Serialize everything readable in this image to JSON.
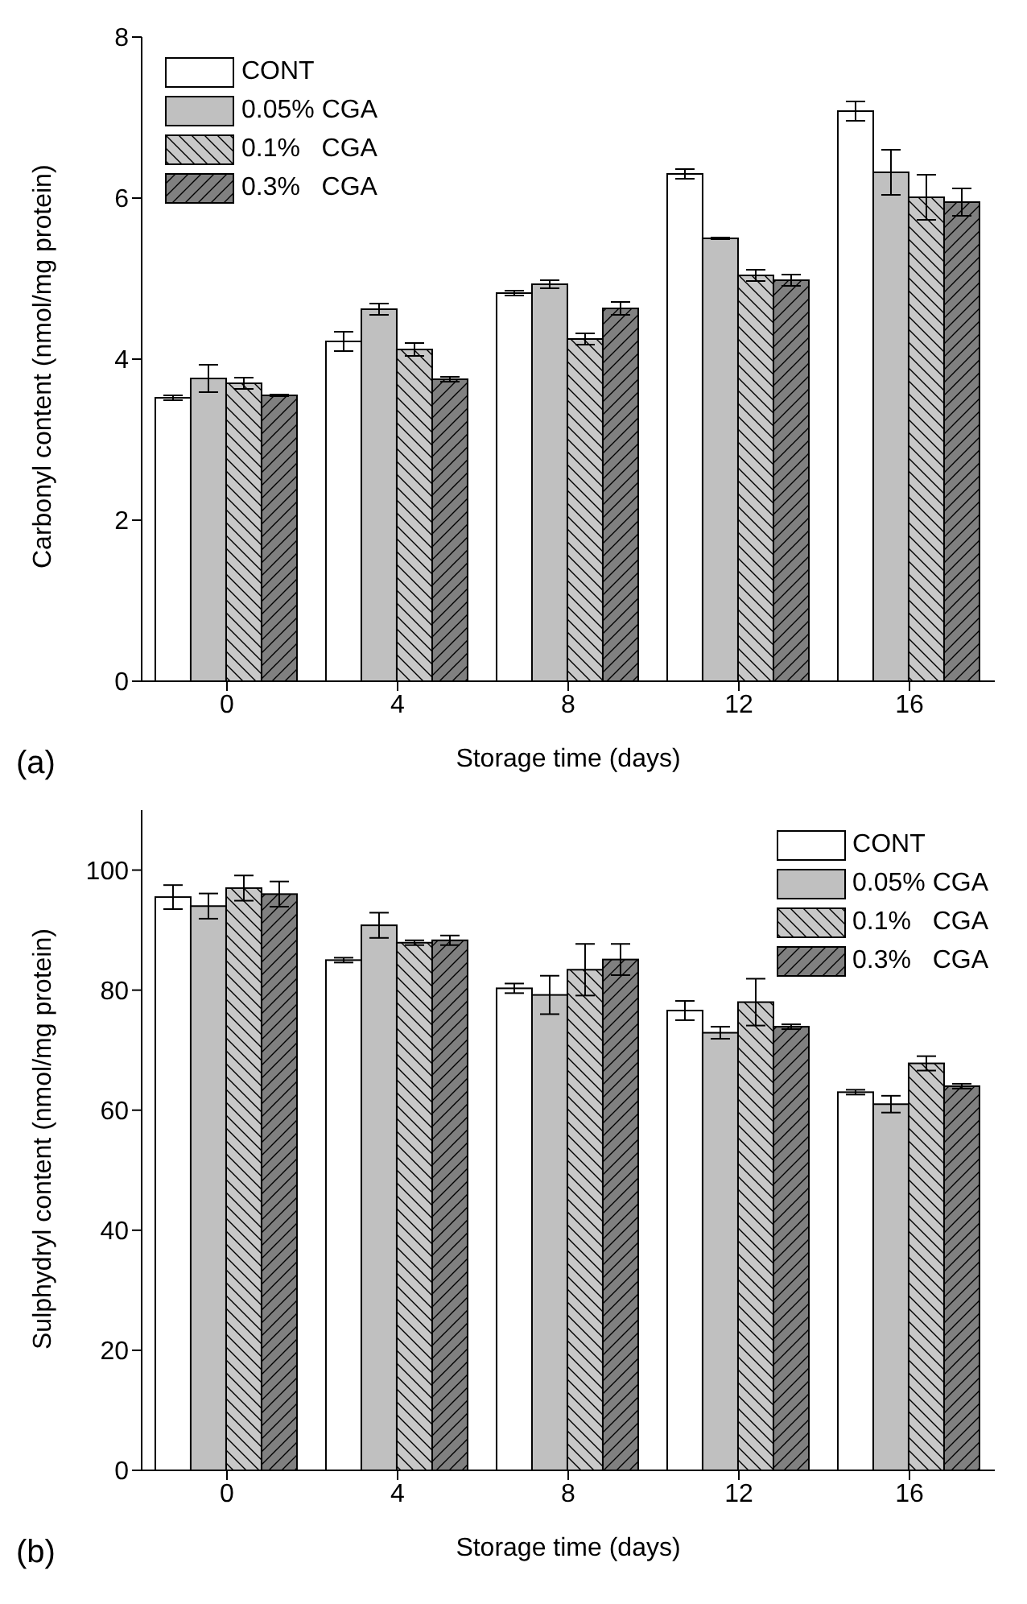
{
  "chart_data": [
    {
      "type": "bar",
      "xlabel": "Storage time (days)",
      "ylabel": "Carbonyl content (nmol/mg protein)",
      "categories": [
        "0",
        "4",
        "8",
        "12",
        "16"
      ],
      "ylim": [
        0,
        8
      ],
      "yticks": [
        0,
        2,
        4,
        6,
        8
      ],
      "legend": "top left",
      "annotations": [
        "(a)"
      ],
      "series": [
        {
          "name": "CONT",
          "color": "#ffffff",
          "values": [
            3.52,
            4.22,
            4.82,
            6.3,
            7.08
          ],
          "errors": [
            0.03,
            0.12,
            0.03,
            0.06,
            0.12
          ]
        },
        {
          "name": "0.05% CGA",
          "color": "#c0c0c0",
          "values": [
            3.76,
            4.62,
            4.93,
            5.5,
            6.32
          ],
          "errors": [
            0.17,
            0.07,
            0.05,
            0.01,
            0.28
          ]
        },
        {
          "name": "0.1%   CGA",
          "color": "#c8c8c8",
          "values": [
            3.7,
            4.12,
            4.25,
            5.04,
            6.01
          ],
          "errors": [
            0.07,
            0.08,
            0.07,
            0.07,
            0.28
          ]
        },
        {
          "name": "0.3%   CGA",
          "color": "#808080",
          "values": [
            3.55,
            3.75,
            4.63,
            4.98,
            5.95
          ],
          "errors": [
            0.01,
            0.03,
            0.08,
            0.07,
            0.17
          ]
        }
      ]
    },
    {
      "type": "bar",
      "xlabel": "Storage time (days)",
      "ylabel": "Sulphydryl content (nmol/mg protein)",
      "categories": [
        "0",
        "4",
        "8",
        "12",
        "16"
      ],
      "ylim": [
        0,
        110
      ],
      "yticks": [
        0,
        20,
        40,
        60,
        80,
        100
      ],
      "legend": "top right",
      "annotations": [
        "(b)"
      ],
      "series": [
        {
          "name": "CONT",
          "color": "#ffffff",
          "values": [
            95.5,
            85,
            80.3,
            76.6,
            63
          ],
          "errors": [
            2,
            0.4,
            0.8,
            1.6,
            0.4
          ]
        },
        {
          "name": "0.05% CGA",
          "color": "#c0c0c0",
          "values": [
            94,
            90.8,
            79.2,
            72.9,
            61
          ],
          "errors": [
            2.1,
            2.1,
            3.2,
            1,
            1.4
          ]
        },
        {
          "name": "0.1%   CGA",
          "color": "#c8c8c8",
          "values": [
            97,
            87.9,
            83.4,
            78,
            67.8
          ],
          "errors": [
            2.1,
            0.4,
            4.3,
            3.9,
            1.2
          ]
        },
        {
          "name": "0.3%   CGA",
          "color": "#808080",
          "values": [
            96,
            88.3,
            85.1,
            73.9,
            64
          ],
          "errors": [
            2.1,
            0.8,
            2.6,
            0.4,
            0.4
          ]
        }
      ]
    }
  ]
}
